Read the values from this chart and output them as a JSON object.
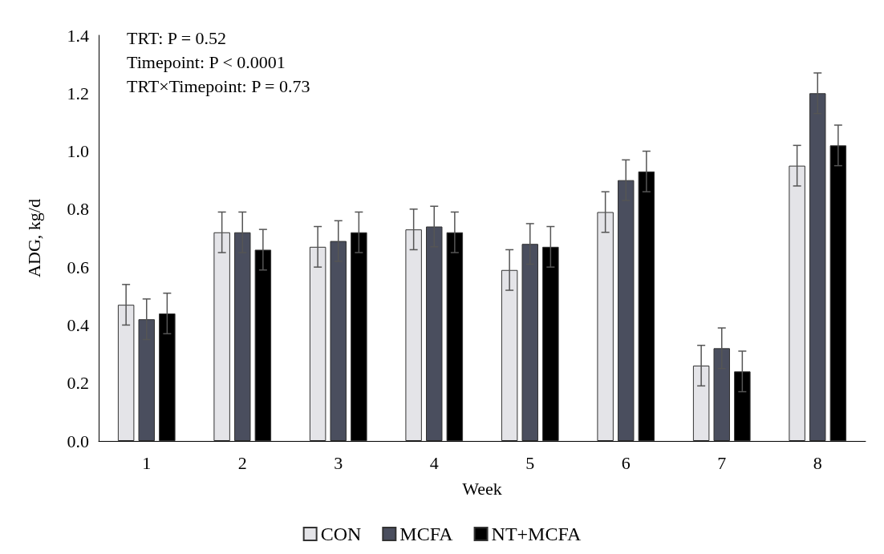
{
  "chart_data": {
    "type": "bar",
    "xlabel": "Week",
    "ylabel": "ADG, kg/d",
    "categories": [
      "1",
      "2",
      "3",
      "4",
      "5",
      "6",
      "7",
      "8"
    ],
    "series": [
      {
        "name": "CON",
        "color": "#e4e4e8",
        "values": [
          0.47,
          0.72,
          0.67,
          0.73,
          0.59,
          0.79,
          0.26,
          0.95
        ],
        "errors": [
          0.07,
          0.07,
          0.07,
          0.07,
          0.07,
          0.07,
          0.07,
          0.07
        ]
      },
      {
        "name": "MCFA",
        "color": "#4a4e5e",
        "values": [
          0.42,
          0.72,
          0.69,
          0.74,
          0.68,
          0.9,
          0.32,
          1.2
        ],
        "errors": [
          0.07,
          0.07,
          0.07,
          0.07,
          0.07,
          0.07,
          0.07,
          0.07
        ]
      },
      {
        "name": "NT+MCFA",
        "color": "#000000",
        "values": [
          0.44,
          0.66,
          0.72,
          0.72,
          0.67,
          0.93,
          0.24,
          1.02
        ],
        "errors": [
          0.07,
          0.07,
          0.07,
          0.07,
          0.07,
          0.07,
          0.07,
          0.07
        ]
      }
    ],
    "ylim": [
      0,
      1.4
    ],
    "yticks": [
      {
        "value": 0,
        "label": "0.0"
      },
      {
        "value": 0.2,
        "label": "0.2"
      },
      {
        "value": 0.4,
        "label": "0.4"
      },
      {
        "value": 0.6,
        "label": "0.6"
      },
      {
        "value": 0.8,
        "label": "0.8"
      },
      {
        "value": 1.0,
        "label": "1.0"
      },
      {
        "value": 1.2,
        "label": "1.2"
      },
      {
        "value": 1.4,
        "label": "1.4"
      }
    ],
    "annotations": [
      "TRT: P = 0.52",
      "Timepoint: P < 0.0001",
      "TRT×Timepoint: P = 0.73"
    ],
    "grid": false,
    "legend": "bottom"
  }
}
